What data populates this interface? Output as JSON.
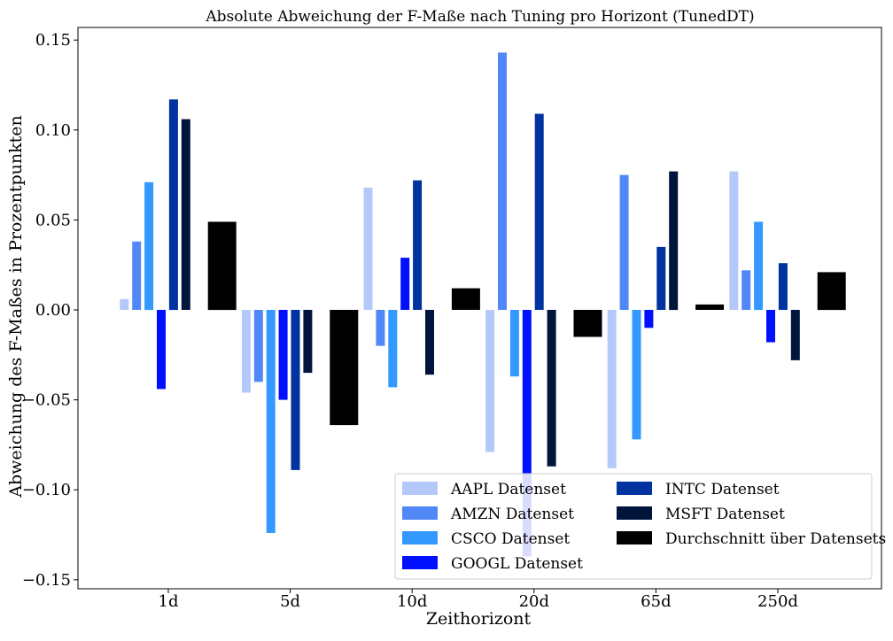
{
  "chart_data": {
    "type": "bar",
    "title": "Absolute Abweichung der F-Maße nach Tuning pro Horizont (TunedDT)",
    "xlabel": "Zeithorizont",
    "ylabel": "Abweichung des F-Maßes in Prozentpunkten",
    "categories": [
      "1d",
      "5d",
      "10d",
      "20d",
      "65d",
      "250d"
    ],
    "ylim": [
      -0.155,
      0.157
    ],
    "yticks": [
      0.15,
      0.1,
      0.05,
      0.0,
      -0.05,
      -0.1,
      -0.15
    ],
    "ytick_labels": [
      "0.15",
      "0.10",
      "0.05",
      "0.00",
      "−0.05",
      "−0.10",
      "−0.15"
    ],
    "grid": false,
    "legend_position": "lower-right",
    "series": [
      {
        "name": "AAPL Datenset",
        "color": "#b4c8fa",
        "values": [
          0.006,
          -0.046,
          0.068,
          -0.079,
          -0.088,
          0.077
        ]
      },
      {
        "name": "AMZN Datenset",
        "color": "#5088f8",
        "values": [
          0.038,
          -0.04,
          -0.02,
          0.143,
          0.075,
          0.022
        ]
      },
      {
        "name": "CSCO Datenset",
        "color": "#3399ff",
        "values": [
          0.071,
          -0.124,
          -0.043,
          -0.037,
          -0.072,
          0.049
        ]
      },
      {
        "name": "GOOGL Datenset",
        "color": "#0010ff",
        "values": [
          -0.044,
          -0.05,
          0.029,
          -0.137,
          -0.01,
          -0.018
        ]
      },
      {
        "name": "INTC Datenset",
        "color": "#0033a0",
        "values": [
          0.117,
          -0.089,
          0.072,
          0.109,
          0.035,
          0.026
        ]
      },
      {
        "name": "MSFT Datenset",
        "color": "#00143c",
        "values": [
          0.106,
          -0.035,
          -0.036,
          -0.087,
          0.077,
          -0.028
        ]
      },
      {
        "name": "Durchschnitt über Datensets",
        "color": "#000000",
        "values": [
          0.049,
          -0.064,
          0.012,
          -0.015,
          0.003,
          0.021
        ]
      }
    ]
  }
}
